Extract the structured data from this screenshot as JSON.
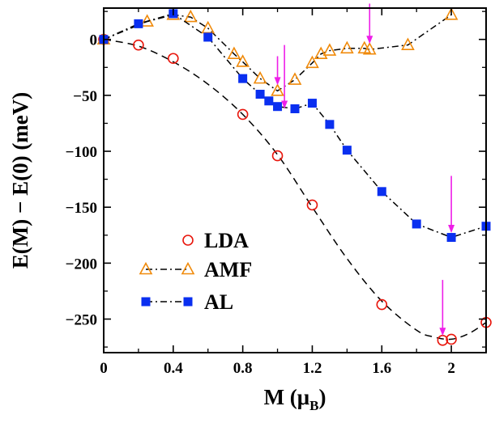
{
  "chart_data": {
    "type": "line",
    "xlabel_main": "M (μ",
    "xlabel_sub": "B",
    "xlabel_close": ")",
    "ylabel": "E(M) − E(0)  (meV)",
    "xlim": [
      0,
      2.2
    ],
    "ylim": [
      -280,
      28
    ],
    "xticks": [
      0,
      0.4,
      0.8,
      1.2,
      1.6,
      2
    ],
    "xtick_labels": [
      "0",
      "0.4",
      "0.8",
      "1.2",
      "1.6",
      "2"
    ],
    "yticks": [
      0,
      -50,
      -100,
      -150,
      -200,
      -250
    ],
    "ytick_labels": [
      "0",
      "−50",
      "−100",
      "−150",
      "−200",
      "−250"
    ],
    "grid": false,
    "legend_position": "lower-left",
    "series": [
      {
        "name": "LDA",
        "marker": "circle",
        "color": "#e8160c",
        "line_style": "dashed",
        "x": [
          0,
          0.2,
          0.4,
          0.8,
          1.0,
          1.2,
          1.6,
          1.95,
          2.0,
          2.2
        ],
        "y": [
          0,
          -5,
          -17,
          -67,
          -104,
          -148,
          -237,
          -269,
          -268,
          -253
        ],
        "curve_x": [
          0,
          0.2,
          0.4,
          0.6,
          0.8,
          1.0,
          1.2,
          1.4,
          1.6,
          1.8,
          1.9,
          2.0,
          2.1,
          2.2
        ],
        "curve_y": [
          0,
          -6,
          -20,
          -40,
          -67,
          -103,
          -150,
          -196,
          -234,
          -260,
          -266,
          -268,
          -263,
          -253
        ]
      },
      {
        "name": "AMF",
        "marker": "triangle",
        "color": "#f08a0a",
        "line_style": "dashdot",
        "x": [
          0,
          0.25,
          0.4,
          0.5,
          0.6,
          0.75,
          0.8,
          0.9,
          1.0,
          1.1,
          1.2,
          1.25,
          1.3,
          1.4,
          1.5,
          1.53,
          1.75,
          2.0
        ],
        "y": [
          0,
          16,
          22,
          20,
          10,
          -13,
          -20,
          -35,
          -46,
          -36,
          -21,
          -13,
          -10,
          -8,
          -8,
          -9,
          -5,
          22
        ]
      },
      {
        "name": "AL",
        "marker": "square",
        "color": "#0a2ff0",
        "line_style": "dashdot",
        "x": [
          0,
          0.2,
          0.4,
          0.6,
          0.8,
          0.9,
          0.95,
          1.0,
          1.1,
          1.2,
          1.3,
          1.4,
          1.6,
          1.8,
          2.0,
          2.2
        ],
        "y": [
          0,
          14,
          23,
          2,
          -35,
          -49,
          -55,
          -60,
          -62,
          -57,
          -76,
          -99,
          -136,
          -165,
          -177,
          -167
        ]
      }
    ],
    "arrows": [
      {
        "x": 1.0,
        "y_from": -15,
        "y_to": -41
      },
      {
        "x": 1.04,
        "y_from": -5,
        "y_to": -62
      },
      {
        "x": 1.53,
        "y_from": 32,
        "y_to": -4
      },
      {
        "x": 2.0,
        "y_from": -122,
        "y_to": -173
      },
      {
        "x": 1.95,
        "y_from": -215,
        "y_to": -265
      }
    ],
    "arrow_color": "#ee1ee8"
  }
}
